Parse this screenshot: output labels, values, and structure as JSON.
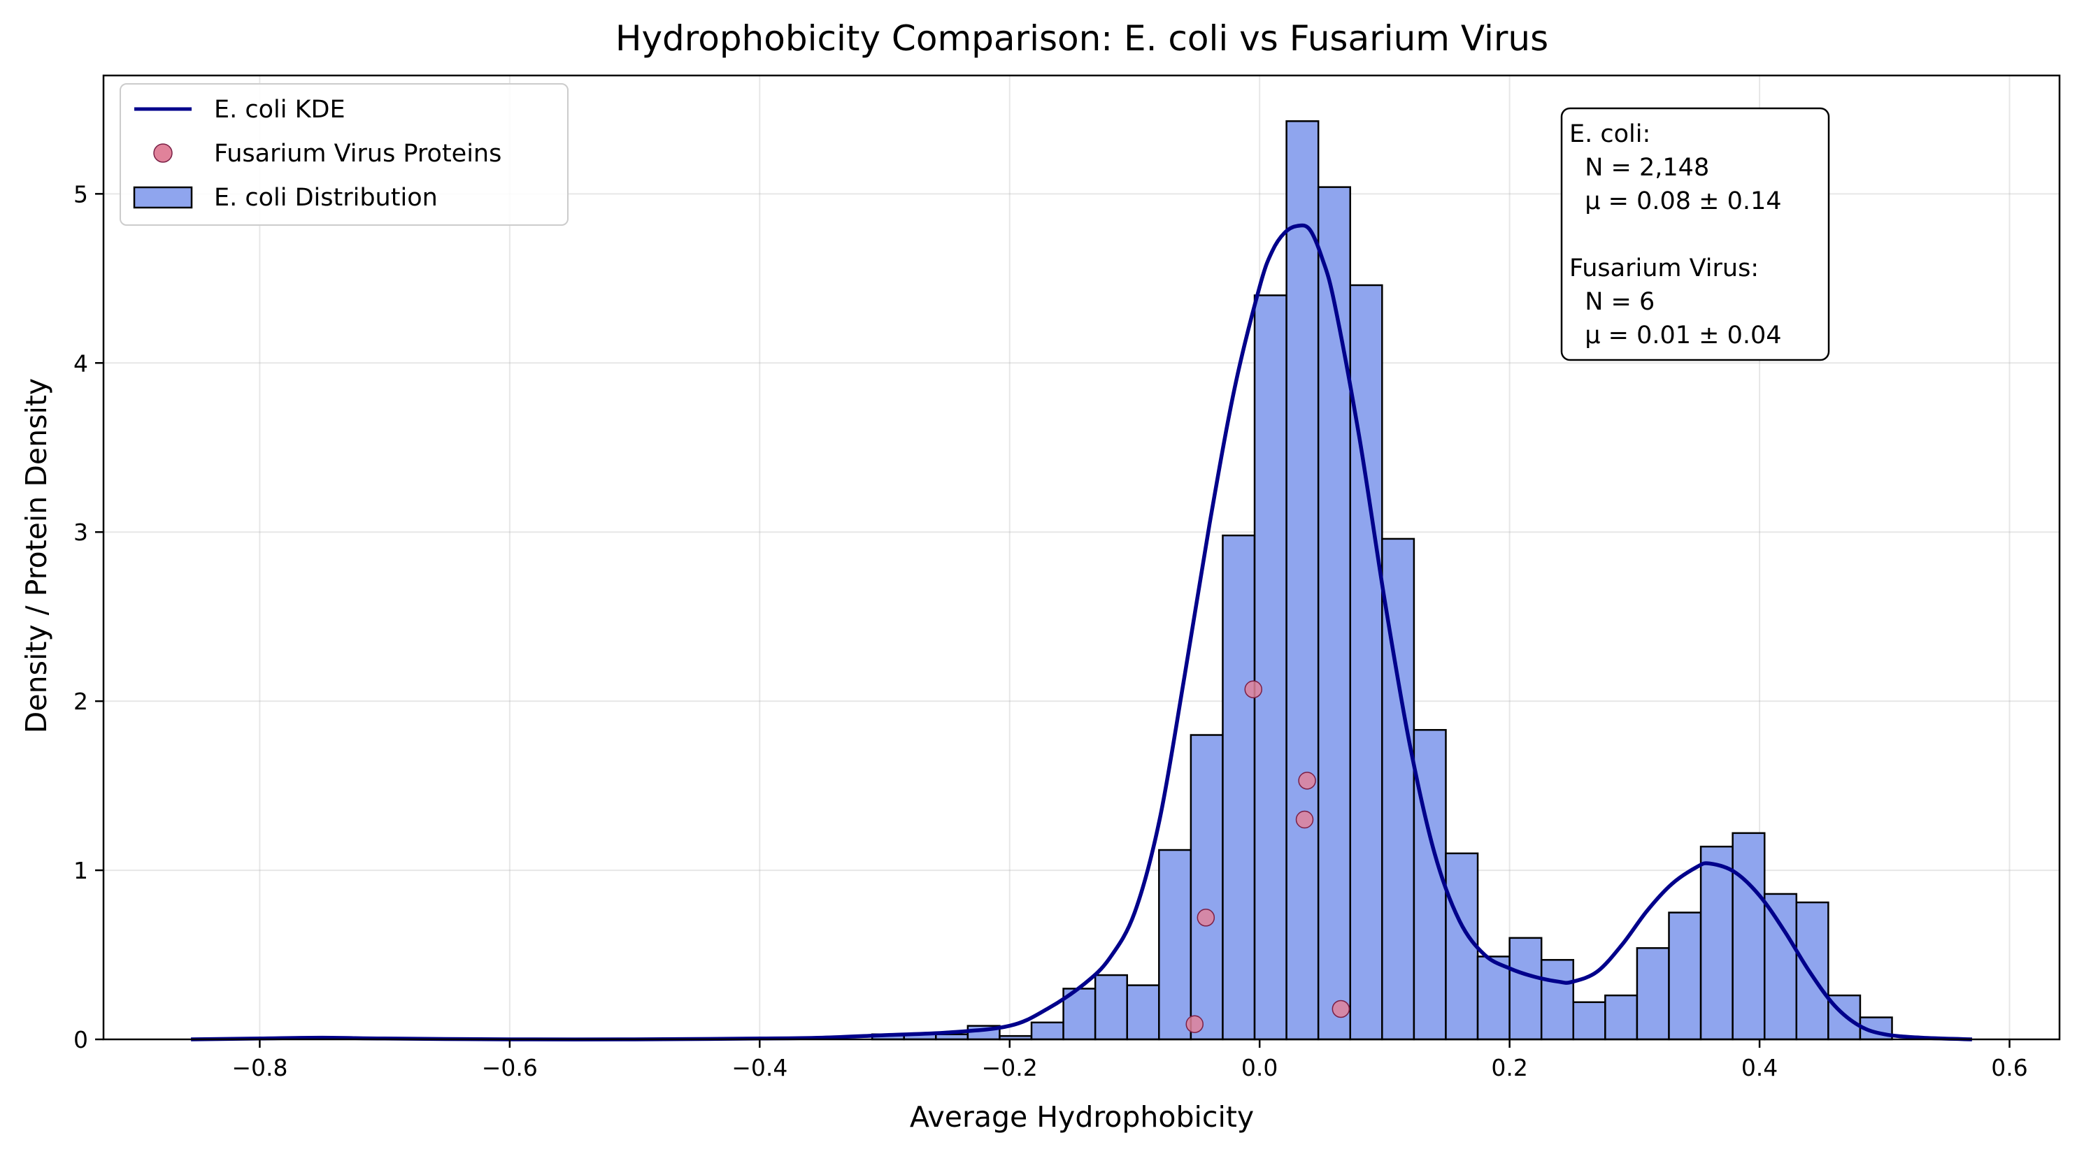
{
  "chart_data": {
    "type": "histogram",
    "title": "Hydrophobicity Comparison: E. coli vs Fusarium Virus",
    "xlabel": "Average Hydrophobicity",
    "ylabel": "Density / Protein Density",
    "xlim": [
      -0.925,
      0.64
    ],
    "ylim": [
      0,
      5.7
    ],
    "xticks": [
      -0.8,
      -0.6,
      -0.4,
      -0.2,
      0.0,
      0.2,
      0.4,
      0.6
    ],
    "xtick_labels": [
      "−0.8",
      "−0.6",
      "−0.4",
      "−0.2",
      "0.0",
      "0.2",
      "0.4",
      "0.6"
    ],
    "yticks": [
      0,
      1,
      2,
      3,
      4,
      5
    ],
    "ytick_labels": [
      "0",
      "1",
      "2",
      "3",
      "4",
      "5"
    ],
    "grid": true,
    "legend_position": "top-left",
    "legend": [
      {
        "label": "E. coli KDE",
        "kind": "line",
        "color": "#00008b"
      },
      {
        "label": "Fusarium Virus Proteins",
        "kind": "marker",
        "color": "#e0829a"
      },
      {
        "label": "E. coli Distribution",
        "kind": "patch",
        "color": "#8fa5ee"
      }
    ],
    "histogram": {
      "name": "E. coli Distribution",
      "color": "#8fa5ee",
      "edge_color": "#000000",
      "bin_start": -0.31,
      "bin_width": 0.0255,
      "values": [
        0.03,
        0.03,
        0.03,
        0.08,
        0.02,
        0.1,
        0.3,
        0.38,
        0.32,
        1.12,
        1.8,
        2.98,
        4.4,
        5.43,
        5.04,
        4.46,
        2.96,
        1.83,
        1.1,
        0.49,
        0.6,
        0.47,
        0.22,
        0.26,
        0.54,
        0.75,
        1.14,
        1.22,
        0.86,
        0.81,
        0.26,
        0.13
      ]
    },
    "kde": {
      "name": "E. coli KDE",
      "color": "#00008b",
      "x": [
        -0.855,
        -0.8,
        -0.75,
        -0.7,
        -0.6,
        -0.5,
        -0.4,
        -0.35,
        -0.3,
        -0.25,
        -0.2,
        -0.17,
        -0.14,
        -0.12,
        -0.1,
        -0.08,
        -0.06,
        -0.04,
        -0.02,
        0.0,
        0.01,
        0.02,
        0.03,
        0.04,
        0.05,
        0.06,
        0.08,
        0.1,
        0.12,
        0.14,
        0.16,
        0.18,
        0.2,
        0.22,
        0.24,
        0.25,
        0.27,
        0.29,
        0.31,
        0.33,
        0.35,
        0.36,
        0.38,
        0.4,
        0.42,
        0.44,
        0.46,
        0.48,
        0.5,
        0.53,
        0.57
      ],
      "y": [
        0.0,
        0.005,
        0.01,
        0.005,
        0.0,
        0.0,
        0.005,
        0.01,
        0.025,
        0.04,
        0.08,
        0.18,
        0.33,
        0.48,
        0.75,
        1.3,
        2.15,
        3.05,
        3.85,
        4.45,
        4.66,
        4.77,
        4.81,
        4.79,
        4.62,
        4.35,
        3.55,
        2.6,
        1.75,
        1.1,
        0.7,
        0.5,
        0.42,
        0.37,
        0.34,
        0.34,
        0.4,
        0.56,
        0.76,
        0.92,
        1.02,
        1.04,
        0.99,
        0.85,
        0.64,
        0.4,
        0.2,
        0.08,
        0.03,
        0.01,
        0.0
      ]
    },
    "scatter": {
      "name": "Fusarium Virus Proteins",
      "color": "#e0829a",
      "edge_color": "#7a1f45",
      "x": [
        -0.005,
        0.038,
        0.036,
        -0.043,
        0.065,
        -0.052
      ],
      "y": [
        2.07,
        1.53,
        1.3,
        0.72,
        0.18,
        0.09
      ]
    },
    "stats_box": {
      "position": "top-right",
      "lines": [
        "E. coli:",
        "  N = 2,148",
        "  μ = 0.08 ± 0.14",
        "",
        "Fusarium Virus:",
        "  N = 6",
        "  μ = 0.01 ± 0.04"
      ]
    }
  }
}
